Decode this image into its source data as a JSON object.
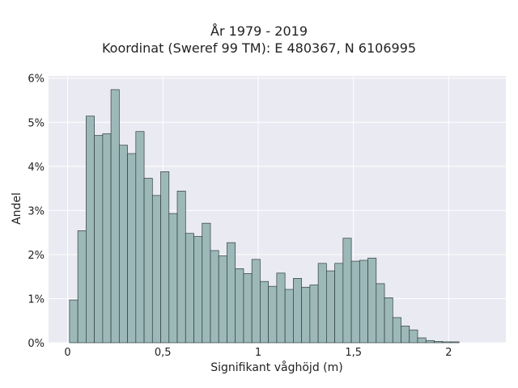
{
  "chart_data": {
    "type": "bar",
    "title_line1": "År 1979 - 2019",
    "title_line2": "Koordinat (Sweref 99 TM): E 480367, N 6106995",
    "xlabel": "Signifikant våghöjd (m)",
    "ylabel": "Andel",
    "x_ticks": [
      {
        "value": 0,
        "label": "0"
      },
      {
        "value": 0.5,
        "label": "0,5"
      },
      {
        "value": 1,
        "label": "1"
      },
      {
        "value": 1.5,
        "label": "1,5"
      },
      {
        "value": 2,
        "label": "2"
      }
    ],
    "y_ticks": [
      {
        "value": 0,
        "label": "0%"
      },
      {
        "value": 1,
        "label": "1%"
      },
      {
        "value": 2,
        "label": "2%"
      },
      {
        "value": 3,
        "label": "3%"
      },
      {
        "value": 4,
        "label": "4%"
      },
      {
        "value": 5,
        "label": "5%"
      },
      {
        "value": 6,
        "label": "6%"
      }
    ],
    "xlim": [
      -0.1,
      2.3
    ],
    "ylim": [
      0,
      6.05
    ],
    "bin_start": 0.01,
    "bin_width": 0.0435,
    "values": [
      0.97,
      2.54,
      5.14,
      4.7,
      4.74,
      5.74,
      4.48,
      4.29,
      4.79,
      3.73,
      3.34,
      3.88,
      2.93,
      3.44,
      2.48,
      2.41,
      2.71,
      2.09,
      1.97,
      2.27,
      1.68,
      1.57,
      1.89,
      1.39,
      1.28,
      1.58,
      1.21,
      1.46,
      1.26,
      1.31,
      1.8,
      1.63,
      1.8,
      2.37,
      1.85,
      1.87,
      1.92,
      1.34,
      1.02,
      0.57,
      0.38,
      0.29,
      0.11,
      0.05,
      0.03,
      0.02,
      0.02
    ],
    "colors": {
      "plot_background": "#eaeaf2",
      "bar_fill": "#9db8b8",
      "bar_stroke": "#2f3f3f",
      "grid": "#ffffff"
    },
    "grid": true
  }
}
